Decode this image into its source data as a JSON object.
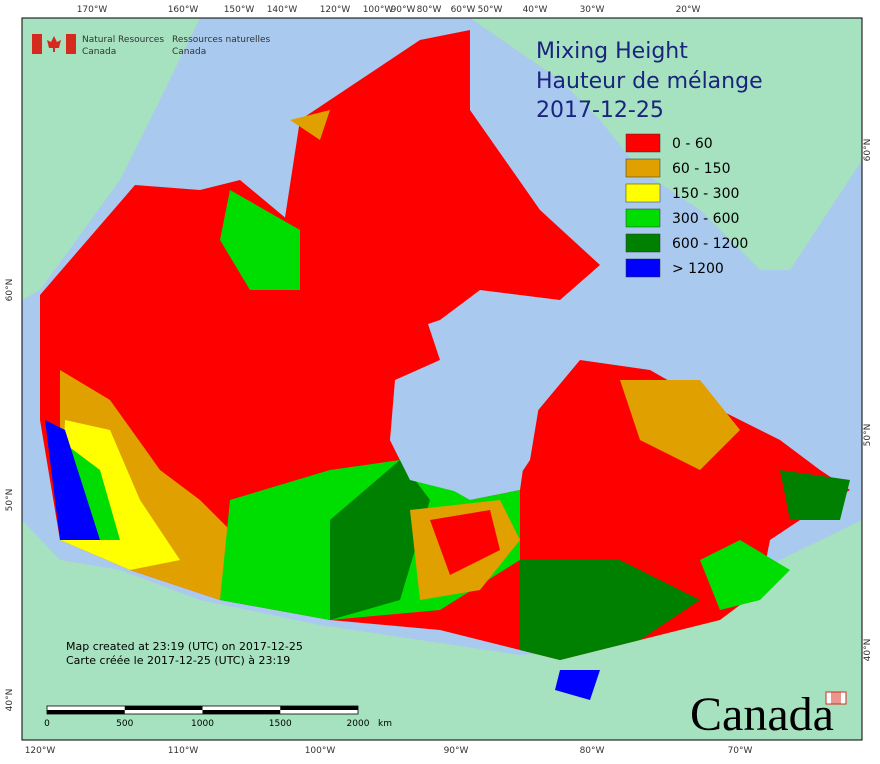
{
  "header": {
    "org_en": [
      "Natural Resources",
      "Canada"
    ],
    "org_fr": [
      "Ressources naturelles",
      "Canada"
    ]
  },
  "title": [
    "Mixing Height",
    "Hauteur de mélange",
    "2017-12-25"
  ],
  "legend": [
    {
      "label": "0 - 60",
      "color": "#ff0000"
    },
    {
      "label": "60 - 150",
      "color": "#e0a000"
    },
    {
      "label": "150 - 300",
      "color": "#ffff00"
    },
    {
      "label": "300 - 600",
      "color": "#00dd00"
    },
    {
      "label": "600 - 1200",
      "color": "#008000"
    },
    {
      "label": "> 1200",
      "color": "#0000ff"
    }
  ],
  "top_labels": [
    "170°W",
    "160°W",
    "150°W",
    "140°W",
    "120°W",
    "100°W",
    "90°W",
    "80°W",
    "60°W",
    "50°W",
    "40°W",
    "30°W",
    "20°W"
  ],
  "bottom_labels": [
    "120°W",
    "110°W",
    "100°W",
    "90°W",
    "80°W",
    "70°W"
  ],
  "left_labels": [
    "60°N",
    "50°N",
    "40°N"
  ],
  "right_labels": [
    "60°N",
    "50°N",
    "40°N"
  ],
  "credits": [
    "Map created at 23:19 (UTC) on 2017-12-25",
    "Carte créée le 2017-12-25 (UTC) à 23:19"
  ],
  "scale": {
    "labels": [
      0,
      500,
      1000,
      1500,
      2000
    ],
    "unit": "km"
  },
  "wordmark": "Canada"
}
